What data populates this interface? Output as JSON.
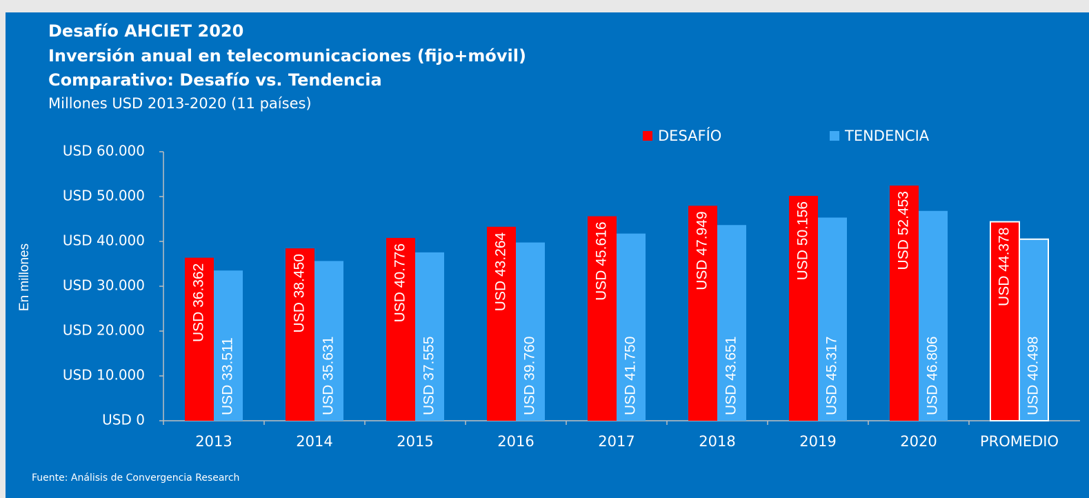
{
  "chart_data": {
    "type": "bar",
    "title_lines": [
      "Desafío AHCIET 2020",
      "Inversión anual en telecomunicaciones (fijo+móvil)",
      "Comparativo:  Desafío vs. Tendencia"
    ],
    "subtitle": "Millones USD 2013-2020 (11 países)",
    "ylabel": "En millones",
    "source": "Fuente:  Análisis de Convergencia Research",
    "categories": [
      "2013",
      "2014",
      "2015",
      "2016",
      "2017",
      "2018",
      "2019",
      "2020",
      "PROMEDIO"
    ],
    "series": [
      {
        "name": "DESAFÍO",
        "color": "#ff0000",
        "values": [
          36362,
          38450,
          40776,
          43264,
          45616,
          47949,
          50156,
          52453,
          44378
        ],
        "value_labels": [
          "USD 36.362",
          "USD 38.450",
          "USD 40.776",
          "USD 43.264",
          "USD 45.616",
          "USD 47.949",
          "USD 50.156",
          "USD 52.453",
          "USD 44.378"
        ]
      },
      {
        "name": "TENDENCIA",
        "color": "#3fa9f5",
        "values": [
          33511,
          35631,
          37555,
          39760,
          41750,
          43651,
          45317,
          46806,
          40498
        ],
        "value_labels": [
          "USD 33.511",
          "USD 35.631",
          "USD 37.555",
          "USD 39.760",
          "USD 41.750",
          "USD 43.651",
          "USD 45.317",
          "USD 46.806",
          "USD 40.498"
        ]
      }
    ],
    "ylim": [
      0,
      60000
    ],
    "yticks": [
      {
        "value": 0,
        "label": "USD 0"
      },
      {
        "value": 10000,
        "label": "USD 10.000"
      },
      {
        "value": 20000,
        "label": "USD 20.000"
      },
      {
        "value": 30000,
        "label": "USD 30.000"
      },
      {
        "value": 40000,
        "label": "USD 40.000"
      },
      {
        "value": 50000,
        "label": "USD 50.000"
      },
      {
        "value": 60000,
        "label": "USD 60.000"
      }
    ],
    "legend": "top-right"
  }
}
